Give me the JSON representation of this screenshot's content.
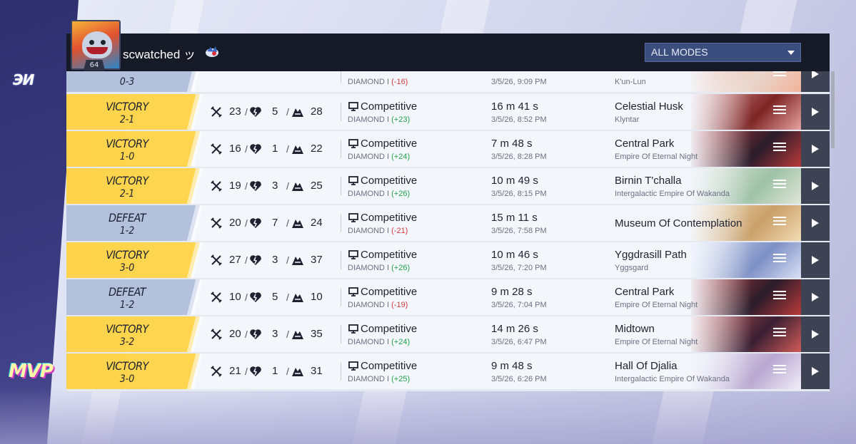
{
  "header": {
    "username": "scwatched ッ",
    "level": "64",
    "mode_filter": "ALL MODES"
  },
  "branding": {
    "side_logo": "ЭИ",
    "mvp_label": "MVP"
  },
  "colors": {
    "victory": "#ffd34c",
    "defeat": "#b3c1dd",
    "positive": "#22a24a",
    "negative": "#d23a3a",
    "header_bg": "#161a26"
  },
  "matches": [
    {
      "result": "",
      "score": "0-3",
      "kills": "",
      "deaths": "",
      "assists": "",
      "mode": "",
      "rank": "DIAMOND I",
      "delta": "(-16)",
      "duration": "",
      "date": "3/5/26, 9:09 PM",
      "map": "",
      "region": "K'un-Lun"
    },
    {
      "result": "VICTORY",
      "score": "2-1",
      "kills": "23",
      "deaths": "5",
      "assists": "28",
      "mode": "Competitive",
      "rank": "DIAMOND I",
      "delta": "(+23)",
      "duration": "16 m 41 s",
      "date": "3/5/26, 8:52 PM",
      "map": "Celestial Husk",
      "region": "Klyntar"
    },
    {
      "result": "VICTORY",
      "score": "1-0",
      "kills": "16",
      "deaths": "1",
      "assists": "22",
      "mode": "Competitive",
      "rank": "DIAMOND I",
      "delta": "(+24)",
      "duration": "7 m 48 s",
      "date": "3/5/26, 8:28 PM",
      "map": "Central Park",
      "region": "Empire Of Eternal Night"
    },
    {
      "result": "VICTORY",
      "score": "2-1",
      "kills": "19",
      "deaths": "3",
      "assists": "25",
      "mode": "Competitive",
      "rank": "DIAMOND I",
      "delta": "(+26)",
      "duration": "10 m 49 s",
      "date": "3/5/26, 8:15 PM",
      "map": "Birnin T'challa",
      "region": "Intergalactic Empire Of Wakanda"
    },
    {
      "result": "DEFEAT",
      "score": "1-2",
      "kills": "20",
      "deaths": "7",
      "assists": "24",
      "mode": "Competitive",
      "rank": "DIAMOND I",
      "delta": "(-21)",
      "duration": "15 m 11 s",
      "date": "3/5/26, 7:58 PM",
      "map": "Museum Of Contemplation",
      "region": ""
    },
    {
      "result": "VICTORY",
      "score": "3-0",
      "kills": "27",
      "deaths": "3",
      "assists": "37",
      "mode": "Competitive",
      "rank": "DIAMOND I",
      "delta": "(+26)",
      "duration": "10 m 46 s",
      "date": "3/5/26, 7:20 PM",
      "map": "Yggdrasill Path",
      "region": "Yggsgard"
    },
    {
      "result": "DEFEAT",
      "score": "1-2",
      "kills": "10",
      "deaths": "5",
      "assists": "10",
      "mode": "Competitive",
      "rank": "DIAMOND I",
      "delta": "(-19)",
      "duration": "9 m 28 s",
      "date": "3/5/26, 7:04 PM",
      "map": "Central Park",
      "region": "Empire Of Eternal Night"
    },
    {
      "result": "VICTORY",
      "score": "3-2",
      "kills": "20",
      "deaths": "3",
      "assists": "35",
      "mode": "Competitive",
      "rank": "DIAMOND I",
      "delta": "(+24)",
      "duration": "14 m 26 s",
      "date": "3/5/26, 6:47 PM",
      "map": "Midtown",
      "region": "Empire Of Eternal Night"
    },
    {
      "result": "VICTORY",
      "score": "3-0",
      "kills": "21",
      "deaths": "1",
      "assists": "31",
      "mode": "Competitive",
      "rank": "DIAMOND I",
      "delta": "(+25)",
      "duration": "9 m 48 s",
      "date": "3/5/26, 6:26 PM",
      "map": "Hall Of Djalia",
      "region": "Intergalactic Empire Of Wakanda"
    }
  ],
  "map_art": [
    {
      "base": "#e9d6cc",
      "accent": "#f2b39a"
    },
    {
      "base": "#7c2424",
      "accent": "#e6a3a0"
    },
    {
      "base": "#2a1c2a",
      "accent": "#b93a3a"
    },
    {
      "base": "#9fc2a8",
      "accent": "#e1e6d8"
    },
    {
      "base": "#c9a06a",
      "accent": "#f3dcb4"
    },
    {
      "base": "#7d8fc4",
      "accent": "#d9e0f5"
    },
    {
      "base": "#2a1c2a",
      "accent": "#b93a3a"
    },
    {
      "base": "#3a1f33",
      "accent": "#d05b57"
    },
    {
      "base": "#b8a8d0",
      "accent": "#f2eef8"
    }
  ]
}
